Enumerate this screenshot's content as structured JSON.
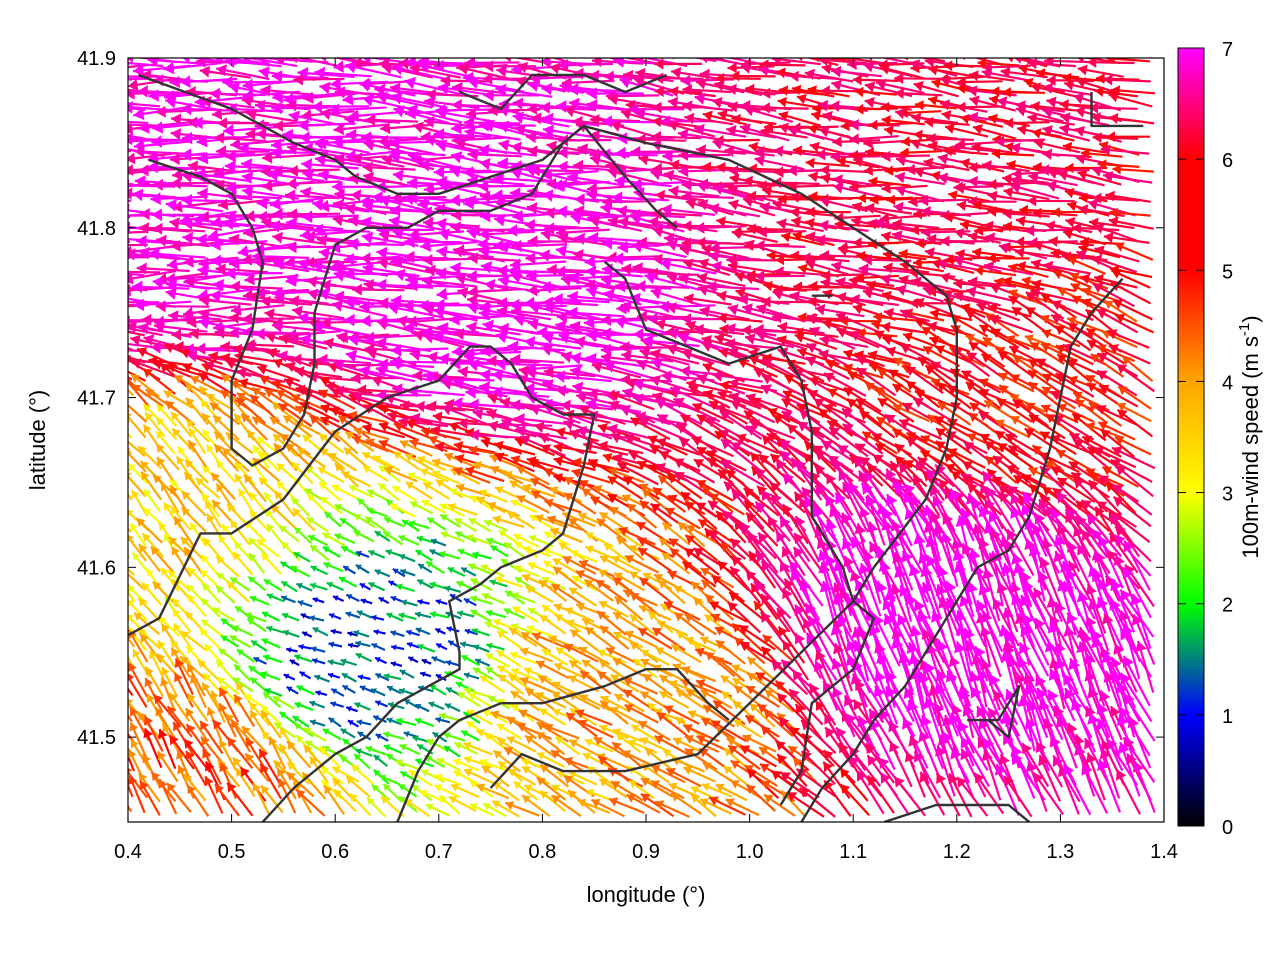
{
  "chart_data": {
    "type": "vector-field",
    "title": "",
    "xlabel": "longitude (°)",
    "ylabel": "latitude (°)",
    "xlim": [
      0.4,
      1.4
    ],
    "ylim": [
      41.45,
      41.9
    ],
    "xticks": [
      0.4,
      0.5,
      0.6,
      0.7,
      0.8,
      0.9,
      1.0,
      1.1,
      1.2,
      1.3,
      1.4
    ],
    "xtick_labels": [
      "0.4",
      "0.5",
      "0.6",
      "0.7",
      "0.8",
      "0.9",
      "1.0",
      "1.1",
      "1.2",
      "1.3",
      "1.4"
    ],
    "yticks": [
      41.5,
      41.6,
      41.7,
      41.8,
      41.9
    ],
    "ytick_labels": [
      "41.5",
      "41.6",
      "41.7",
      "41.8",
      "41.9"
    ],
    "colorbar": {
      "label_main": "100m-wind speed (m s",
      "label_sup": "-1",
      "label_end": ")",
      "range": [
        0,
        7
      ],
      "ticks": [
        0,
        1,
        2,
        3,
        4,
        5,
        6,
        7
      ],
      "tick_labels": [
        "0",
        "1",
        "2",
        "3",
        "4",
        "5",
        "6",
        "7"
      ],
      "palette": [
        "#000000",
        "#0000ff",
        "#00ff00",
        "#ffff00",
        "#ffa500",
        "#ff0000",
        "#ff00ff"
      ]
    },
    "contour_color": "#333333",
    "zones": [
      {
        "region": "north-center",
        "lon": 0.78,
        "lat": 41.77,
        "speed": 7.0,
        "dir_deg": 175
      },
      {
        "region": "northwest",
        "lon": 0.5,
        "lat": 41.8,
        "speed": 6.8,
        "dir_deg": 180
      },
      {
        "region": "northeast",
        "lon": 1.2,
        "lat": 41.8,
        "speed": 5.5,
        "dir_deg": 175
      },
      {
        "region": "east",
        "lon": 1.3,
        "lat": 41.7,
        "speed": 5.0,
        "dir_deg": 150
      },
      {
        "region": "southeast",
        "lon": 1.2,
        "lat": 41.56,
        "speed": 7.0,
        "dir_deg": 110
      },
      {
        "region": "south-center",
        "lon": 0.9,
        "lat": 41.52,
        "speed": 4.0,
        "dir_deg": 150
      },
      {
        "region": "southwest-calm",
        "lon": 0.63,
        "lat": 41.55,
        "speed": 1.2,
        "dir_deg": 160
      },
      {
        "region": "west",
        "lon": 0.45,
        "lat": 41.62,
        "speed": 3.5,
        "dir_deg": 130
      },
      {
        "region": "far-southwest",
        "lon": 0.45,
        "lat": 41.48,
        "speed": 4.5,
        "dir_deg": 120
      }
    ],
    "contours": [
      [
        [
          0.41,
          41.89
        ],
        [
          0.5,
          41.87
        ],
        [
          0.56,
          41.85
        ],
        [
          0.6,
          41.84
        ],
        [
          0.62,
          41.83
        ],
        [
          0.66,
          41.82
        ],
        [
          0.7,
          41.82
        ],
        [
          0.75,
          41.83
        ],
        [
          0.8,
          41.84
        ],
        [
          0.84,
          41.86
        ],
        [
          0.9,
          41.85
        ],
        [
          0.98,
          41.84
        ],
        [
          1.05,
          41.82
        ],
        [
          1.1,
          41.8
        ],
        [
          1.15,
          41.78
        ],
        [
          1.19,
          41.76
        ],
        [
          1.2,
          41.74
        ],
        [
          1.2,
          41.7
        ],
        [
          1.19,
          41.67
        ],
        [
          1.17,
          41.64
        ],
        [
          1.12,
          41.6
        ],
        [
          1.1,
          41.58
        ],
        [
          1.05,
          41.55
        ],
        [
          1.0,
          41.52
        ],
        [
          0.95,
          41.49
        ],
        [
          0.88,
          41.48
        ],
        [
          0.82,
          41.48
        ],
        [
          0.78,
          41.49
        ],
        [
          0.75,
          41.47
        ]
      ],
      [
        [
          0.42,
          41.84
        ],
        [
          0.47,
          41.83
        ],
        [
          0.5,
          41.82
        ],
        [
          0.52,
          41.8
        ],
        [
          0.53,
          41.78
        ],
        [
          0.52,
          41.74
        ],
        [
          0.5,
          41.71
        ],
        [
          0.5,
          41.67
        ],
        [
          0.52,
          41.66
        ],
        [
          0.55,
          41.67
        ],
        [
          0.57,
          41.69
        ],
        [
          0.58,
          41.72
        ],
        [
          0.58,
          41.75
        ],
        [
          0.6,
          41.79
        ],
        [
          0.63,
          41.8
        ],
        [
          0.67,
          41.8
        ],
        [
          0.7,
          41.81
        ],
        [
          0.75,
          41.81
        ],
        [
          0.79,
          41.82
        ],
        [
          0.82,
          41.85
        ],
        [
          0.84,
          41.86
        ],
        [
          0.88,
          41.83
        ],
        [
          0.91,
          41.81
        ],
        [
          0.93,
          41.8
        ]
      ],
      [
        [
          0.86,
          41.78
        ],
        [
          0.88,
          41.77
        ],
        [
          0.9,
          41.74
        ],
        [
          0.94,
          41.73
        ],
        [
          0.98,
          41.72
        ],
        [
          1.03,
          41.73
        ],
        [
          1.05,
          41.71
        ],
        [
          1.06,
          41.68
        ],
        [
          1.06,
          41.63
        ],
        [
          1.07,
          41.62
        ],
        [
          1.09,
          41.6
        ],
        [
          1.1,
          41.58
        ],
        [
          1.12,
          41.57
        ],
        [
          1.1,
          41.54
        ],
        [
          1.06,
          41.52
        ],
        [
          1.05,
          41.48
        ],
        [
          1.03,
          41.46
        ]
      ],
      [
        [
          0.4,
          41.56
        ],
        [
          0.43,
          41.57
        ],
        [
          0.47,
          41.62
        ],
        [
          0.5,
          41.62
        ],
        [
          0.55,
          41.64
        ],
        [
          0.6,
          41.68
        ],
        [
          0.65,
          41.7
        ],
        [
          0.7,
          41.71
        ],
        [
          0.73,
          41.73
        ],
        [
          0.75,
          41.73
        ],
        [
          0.77,
          41.72
        ],
        [
          0.79,
          41.7
        ],
        [
          0.82,
          41.69
        ],
        [
          0.85,
          41.69
        ],
        [
          0.84,
          41.66
        ],
        [
          0.82,
          41.62
        ],
        [
          0.8,
          41.61
        ],
        [
          0.76,
          41.6
        ],
        [
          0.74,
          41.59
        ],
        [
          0.71,
          41.58
        ],
        [
          0.72,
          41.55
        ],
        [
          0.72,
          41.54
        ],
        [
          0.69,
          41.53
        ],
        [
          0.66,
          41.52
        ],
        [
          0.63,
          41.5
        ],
        [
          0.6,
          41.49
        ],
        [
          0.56,
          41.47
        ],
        [
          0.53,
          41.45
        ]
      ],
      [
        [
          0.66,
          41.45
        ],
        [
          0.68,
          41.48
        ],
        [
          0.7,
          41.5
        ],
        [
          0.72,
          41.51
        ],
        [
          0.76,
          41.52
        ],
        [
          0.8,
          41.52
        ],
        [
          0.86,
          41.53
        ],
        [
          0.9,
          41.54
        ],
        [
          0.93,
          41.54
        ],
        [
          0.96,
          41.52
        ],
        [
          0.98,
          41.51
        ]
      ],
      [
        [
          1.36,
          41.77
        ],
        [
          1.33,
          41.75
        ],
        [
          1.31,
          41.73
        ],
        [
          1.3,
          41.7
        ],
        [
          1.29,
          41.67
        ],
        [
          1.27,
          41.63
        ],
        [
          1.25,
          41.61
        ],
        [
          1.22,
          41.6
        ],
        [
          1.2,
          41.58
        ],
        [
          1.18,
          41.56
        ],
        [
          1.15,
          41.53
        ],
        [
          1.12,
          41.51
        ],
        [
          1.1,
          41.49
        ],
        [
          1.07,
          41.47
        ],
        [
          1.05,
          41.45
        ]
      ],
      [
        [
          1.13,
          41.45
        ],
        [
          1.18,
          41.46
        ],
        [
          1.22,
          41.46
        ],
        [
          1.25,
          41.46
        ],
        [
          1.27,
          41.45
        ]
      ],
      [
        [
          1.21,
          41.51
        ],
        [
          1.24,
          41.51
        ],
        [
          1.25,
          41.52
        ],
        [
          1.26,
          41.53
        ],
        [
          1.25,
          41.5
        ],
        [
          1.23,
          41.51
        ]
      ],
      [
        [
          1.33,
          41.88
        ],
        [
          1.33,
          41.86
        ],
        [
          1.36,
          41.86
        ],
        [
          1.38,
          41.86
        ]
      ],
      [
        [
          0.72,
          41.88
        ],
        [
          0.76,
          41.87
        ],
        [
          0.79,
          41.89
        ],
        [
          0.84,
          41.89
        ],
        [
          0.88,
          41.88
        ],
        [
          0.92,
          41.89
        ]
      ],
      [
        [
          1.06,
          41.76
        ],
        [
          1.08,
          41.76
        ]
      ]
    ]
  }
}
